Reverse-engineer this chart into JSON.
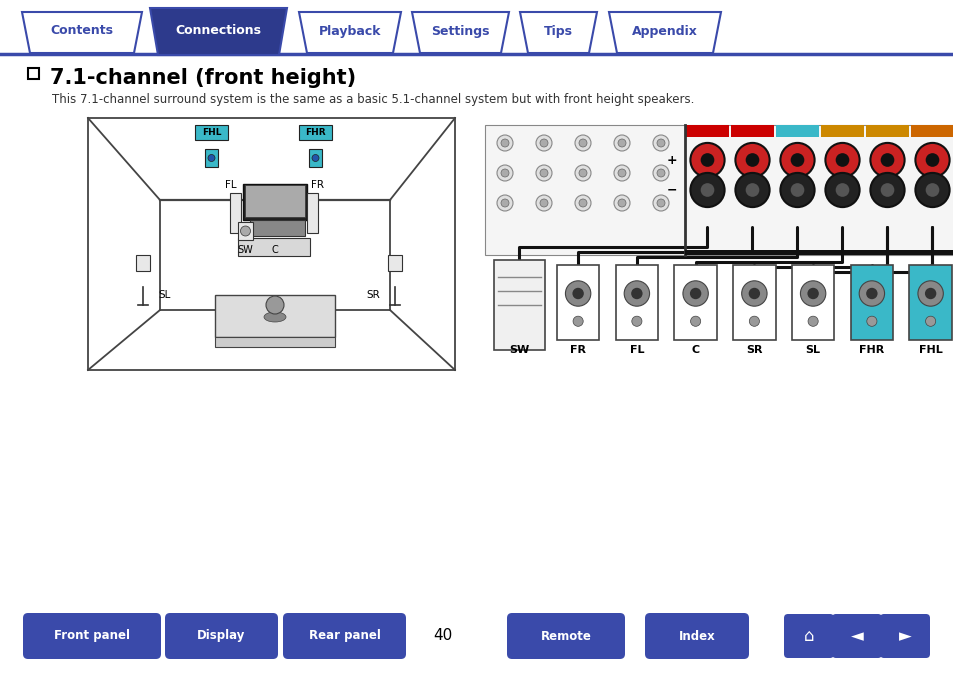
{
  "title": "7.1-channel (front height)",
  "subtitle": "This 7.1-channel surround system is the same as a basic 5.1-channel system but with front height speakers.",
  "nav_tabs": [
    "Contents",
    "Connections",
    "Playback",
    "Settings",
    "Tips",
    "Appendix"
  ],
  "active_tab": "Connections",
  "bottom_buttons": [
    "Front panel",
    "Display",
    "Rear panel",
    "Remote",
    "Index"
  ],
  "page_number": "40",
  "tab_color_active": "#2d3a8c",
  "tab_color_inactive_fill": "#ffffff",
  "tab_color_border": "#3a4aaa",
  "tab_text_active": "#ffffff",
  "tab_text_inactive": "#3a4aaa",
  "bottom_btn_color": "#3a4aaa",
  "bottom_btn_text": "#ffffff",
  "bg_color": "#ffffff",
  "title_color": "#000000",
  "subtitle_color": "#333333",
  "fhl_fhr_color": "#3ab8c8",
  "page_number_color": "#000000",
  "bottom_labels": [
    "SW",
    "FR",
    "FL",
    "C",
    "SR",
    "SL",
    "FHR",
    "FHL"
  ],
  "bottom_speaker_colors": [
    "#ffffff",
    "#ffffff",
    "#ffffff",
    "#ffffff",
    "#ffffff",
    "#ffffff",
    "#3ab8c8",
    "#3ab8c8"
  ]
}
